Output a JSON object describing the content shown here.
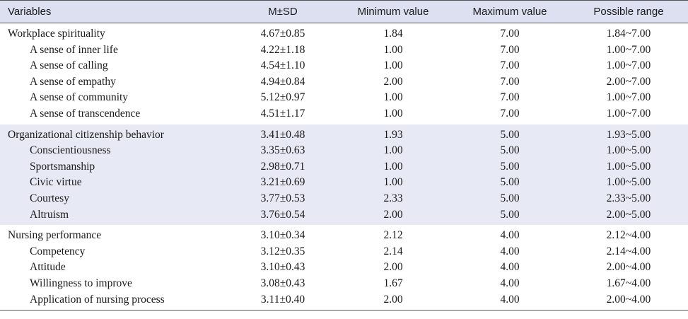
{
  "header": [
    "Variables",
    "M±SD",
    "Minimum value",
    "Maximum value",
    "Possible range"
  ],
  "groups": [
    {
      "rows": [
        {
          "name": "Workplace spirituality",
          "msd": "4.67±0.85",
          "min": "1.84",
          "max": "7.00",
          "range": "1.84~7.00"
        },
        {
          "name": "A sense of inner life",
          "msd": "4.22±1.18",
          "min": "1.00",
          "max": "7.00",
          "range": "1.00~7.00"
        },
        {
          "name": "A sense of calling",
          "msd": "4.54±1.10",
          "min": "1.00",
          "max": "7.00",
          "range": "1.00~7.00"
        },
        {
          "name": "A sense of empathy",
          "msd": "4.94±0.84",
          "min": "2.00",
          "max": "7.00",
          "range": "2.00~7.00"
        },
        {
          "name": "A sense of community",
          "msd": "5.12±0.97",
          "min": "1.00",
          "max": "7.00",
          "range": "1.00~7.00"
        },
        {
          "name": "A sense of transcendence",
          "msd": "4.51±1.17",
          "min": "1.00",
          "max": "7.00",
          "range": "1.00~7.00"
        }
      ]
    },
    {
      "rows": [
        {
          "name": "Organizational citizenship behavior",
          "msd": "3.41±0.48",
          "min": "1.93",
          "max": "5.00",
          "range": "1.93~5.00"
        },
        {
          "name": "Conscientiousness",
          "msd": "3.35±0.63",
          "min": "1.00",
          "max": "5.00",
          "range": "1.00~5.00"
        },
        {
          "name": "Sportsmanship",
          "msd": "2.98±0.71",
          "min": "1.00",
          "max": "5.00",
          "range": "1.00~5.00"
        },
        {
          "name": "Civic virtue",
          "msd": "3.21±0.69",
          "min": "1.00",
          "max": "5.00",
          "range": "1.00~5.00"
        },
        {
          "name": "Courtesy",
          "msd": "3.77±0.53",
          "min": "2.33",
          "max": "5.00",
          "range": "2.33~5.00"
        },
        {
          "name": "Altruism",
          "msd": "3.76±0.54",
          "min": "2.00",
          "max": "5.00",
          "range": "2.00~5.00"
        }
      ]
    },
    {
      "rows": [
        {
          "name": "Nursing performance",
          "msd": "3.10±0.34",
          "min": "2.12",
          "max": "4.00",
          "range": "2.12~4.00"
        },
        {
          "name": "Competency",
          "msd": "3.12±0.35",
          "min": "2.14",
          "max": "4.00",
          "range": "2.14~4.00"
        },
        {
          "name": "Attitude",
          "msd": "3.10±0.43",
          "min": "2.00",
          "max": "4.00",
          "range": "2.00~4.00"
        },
        {
          "name": "Willingness to improve",
          "msd": "3.08±0.43",
          "min": "1.67",
          "max": "4.00",
          "range": "1.67~4.00"
        },
        {
          "name": "Application of nursing process",
          "msd": "3.11±0.40",
          "min": "2.00",
          "max": "4.00",
          "range": "2.00~4.00"
        }
      ]
    }
  ]
}
